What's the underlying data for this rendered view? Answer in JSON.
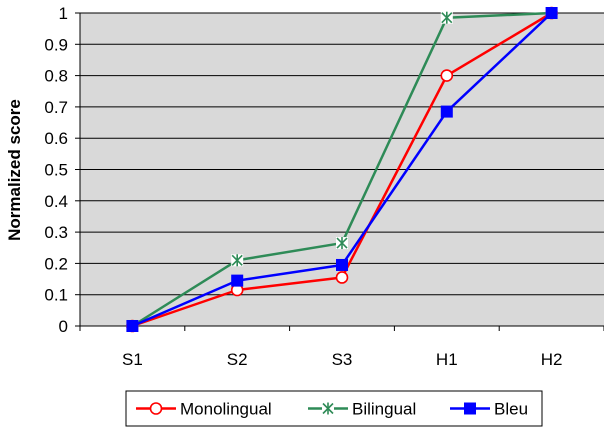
{
  "chart_data": {
    "type": "line",
    "title": "",
    "xlabel": "",
    "ylabel": "Normalized score",
    "categories": [
      "S1",
      "S2",
      "S3",
      "H1",
      "H2"
    ],
    "ylim": [
      0,
      1
    ],
    "yticks": [
      "0",
      "0.1",
      "0.2",
      "0.3",
      "0.4",
      "0.5",
      "0.6",
      "0.7",
      "0.8",
      "0.9",
      "1"
    ],
    "grid": "horizontal",
    "legend_position": "bottom",
    "plot_background": "#d9d9d9",
    "series": [
      {
        "name": "Monolingual",
        "color": "#ff0000",
        "marker": "open-circle",
        "values": [
          0,
          0.115,
          0.155,
          0.8,
          1.0
        ]
      },
      {
        "name": "Bilingual",
        "color": "#2e8b57",
        "marker": "asterisk",
        "values": [
          0,
          0.21,
          0.265,
          0.985,
          1.0
        ]
      },
      {
        "name": "Bleu",
        "color": "#0000ff",
        "marker": "filled-square",
        "values": [
          0,
          0.145,
          0.195,
          0.685,
          1.0
        ]
      }
    ]
  }
}
